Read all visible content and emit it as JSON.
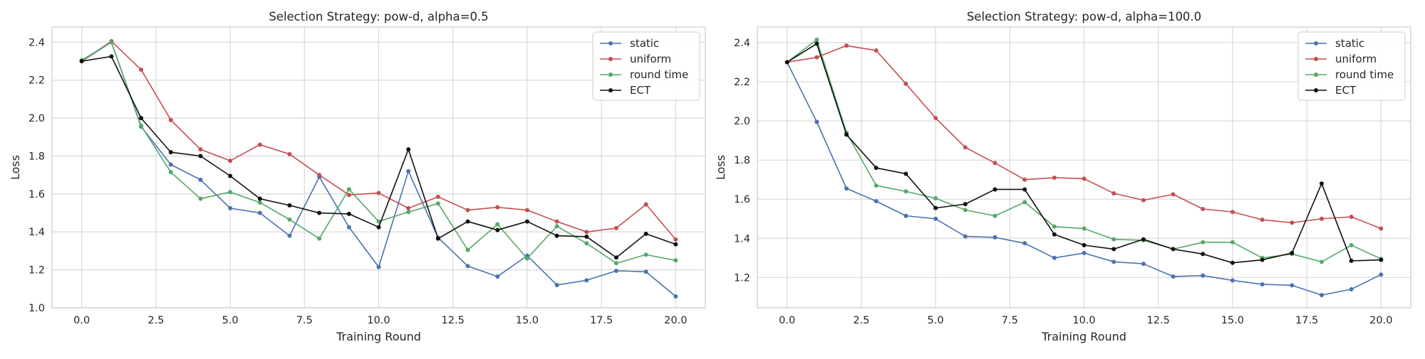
{
  "chart_data": [
    {
      "type": "line",
      "title": "Selection Strategy: pow-d, alpha=0.5",
      "xlabel": "Training Round",
      "ylabel": "Loss",
      "x": [
        0,
        1,
        2,
        3,
        4,
        5,
        6,
        7,
        8,
        9,
        10,
        11,
        12,
        13,
        14,
        15,
        16,
        17,
        18,
        19,
        20
      ],
      "xlim": [
        -1,
        21
      ],
      "ylim": [
        1.0,
        2.48
      ],
      "xticks": [
        0.0,
        2.5,
        5.0,
        7.5,
        10.0,
        12.5,
        15.0,
        17.5,
        20.0
      ],
      "xtick_labels": [
        "0.0",
        "2.5",
        "5.0",
        "7.5",
        "10.0",
        "12.5",
        "15.0",
        "17.5",
        "20.0"
      ],
      "yticks": [
        1.0,
        1.2,
        1.4,
        1.6,
        1.8,
        2.0,
        2.2,
        2.4
      ],
      "ytick_labels": [
        "1.0",
        "1.2",
        "1.4",
        "1.6",
        "1.8",
        "2.0",
        "2.2",
        "2.4"
      ],
      "grid": true,
      "legend_position": "top-right",
      "series": [
        {
          "name": "static",
          "color": "#4c72b0",
          "values": [
            2.3,
            2.4,
            1.955,
            1.755,
            1.675,
            1.525,
            1.5,
            1.38,
            1.69,
            1.425,
            1.215,
            1.72,
            1.37,
            1.22,
            1.165,
            1.275,
            1.12,
            1.145,
            1.195,
            1.19,
            1.06
          ]
        },
        {
          "name": "uniform",
          "color": "#c44e52",
          "values": [
            2.3,
            2.405,
            2.255,
            1.99,
            1.835,
            1.775,
            1.86,
            1.81,
            1.7,
            1.595,
            1.605,
            1.525,
            1.585,
            1.515,
            1.53,
            1.515,
            1.455,
            1.4,
            1.42,
            1.545,
            1.36
          ]
        },
        {
          "name": "round time",
          "color": "#55a868",
          "values": [
            2.305,
            2.4,
            1.96,
            1.715,
            1.575,
            1.61,
            1.555,
            1.465,
            1.365,
            1.625,
            1.455,
            1.505,
            1.55,
            1.305,
            1.44,
            1.26,
            1.43,
            1.34,
            1.235,
            1.28,
            1.25
          ]
        },
        {
          "name": "ECT",
          "color": "#111111",
          "values": [
            2.3,
            2.325,
            2.0,
            1.82,
            1.8,
            1.695,
            1.575,
            1.54,
            1.5,
            1.495,
            1.425,
            1.835,
            1.365,
            1.455,
            1.41,
            1.455,
            1.38,
            1.375,
            1.265,
            1.39,
            1.335
          ]
        }
      ]
    },
    {
      "type": "line",
      "title": "Selection Strategy: pow-d, alpha=100.0",
      "xlabel": "Training Round",
      "ylabel": "Loss",
      "x": [
        0,
        1,
        2,
        3,
        4,
        5,
        6,
        7,
        8,
        9,
        10,
        11,
        12,
        13,
        14,
        15,
        16,
        17,
        18,
        19,
        20
      ],
      "xlim": [
        -1,
        21
      ],
      "ylim": [
        1.045,
        2.48
      ],
      "xticks": [
        0.0,
        2.5,
        5.0,
        7.5,
        10.0,
        12.5,
        15.0,
        17.5,
        20.0
      ],
      "xtick_labels": [
        "0.0",
        "2.5",
        "5.0",
        "7.5",
        "10.0",
        "12.5",
        "15.0",
        "17.5",
        "20.0"
      ],
      "yticks": [
        1.2,
        1.4,
        1.6,
        1.8,
        2.0,
        2.2,
        2.4
      ],
      "ytick_labels": [
        "1.2",
        "1.4",
        "1.6",
        "1.8",
        "2.0",
        "2.2",
        "2.4"
      ],
      "grid": true,
      "legend_position": "top-right",
      "series": [
        {
          "name": "static",
          "color": "#4c72b0",
          "values": [
            2.3,
            1.995,
            1.655,
            1.59,
            1.515,
            1.5,
            1.41,
            1.405,
            1.375,
            1.3,
            1.325,
            1.28,
            1.27,
            1.205,
            1.21,
            1.185,
            1.165,
            1.16,
            1.11,
            1.14,
            1.215
          ]
        },
        {
          "name": "uniform",
          "color": "#c44e52",
          "values": [
            2.3,
            2.325,
            2.385,
            2.36,
            2.19,
            2.015,
            1.865,
            1.785,
            1.7,
            1.71,
            1.705,
            1.63,
            1.595,
            1.625,
            1.55,
            1.535,
            1.495,
            1.48,
            1.5,
            1.51,
            1.45
          ]
        },
        {
          "name": "round time",
          "color": "#55a868",
          "values": [
            2.3,
            2.415,
            1.94,
            1.67,
            1.64,
            1.605,
            1.545,
            1.515,
            1.585,
            1.46,
            1.45,
            1.395,
            1.39,
            1.345,
            1.38,
            1.38,
            1.3,
            1.32,
            1.28,
            1.365,
            1.295
          ]
        },
        {
          "name": "ECT",
          "color": "#111111",
          "values": [
            2.3,
            2.395,
            1.93,
            1.76,
            1.73,
            1.555,
            1.575,
            1.65,
            1.65,
            1.42,
            1.365,
            1.345,
            1.395,
            1.345,
            1.32,
            1.275,
            1.29,
            1.325,
            1.68,
            1.285,
            1.29
          ]
        }
      ]
    }
  ]
}
